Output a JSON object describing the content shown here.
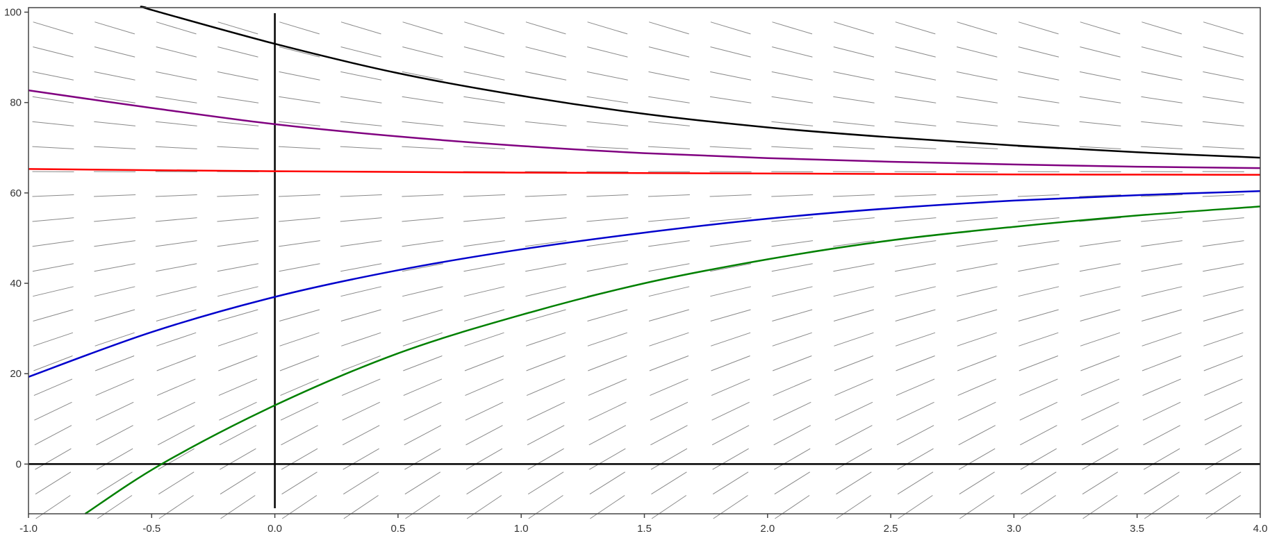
{
  "chart_data": {
    "type": "line",
    "title": "",
    "xlabel": "",
    "ylabel": "",
    "xlim": [
      -1.0,
      4.0
    ],
    "ylim": [
      -11,
      101
    ],
    "grid": false,
    "x_ticks": [
      -1.0,
      -0.5,
      0.0,
      0.5,
      1.0,
      1.5,
      2.0,
      2.5,
      3.0,
      3.5,
      4.0
    ],
    "x_tick_labels": [
      "-1.0",
      "-0.5",
      "0.0",
      "0.5",
      "1.0",
      "1.5",
      "2.0",
      "2.5",
      "3.0",
      "3.5",
      "4.0"
    ],
    "y_ticks": [
      0,
      20,
      40,
      60,
      80,
      100
    ],
    "y_tick_labels": [
      "0",
      "20",
      "40",
      "60",
      "80",
      "100"
    ],
    "axis_lines": {
      "x_zero": true,
      "y_zero": true
    },
    "slope_field": {
      "description": "direction field for dy/dt = k (64 - y)",
      "k": 0.5,
      "equilibrium": 64,
      "x_start": -0.9,
      "x_step": 0.25,
      "x_count": 20,
      "y_start": 96.5,
      "y_step": -5.3,
      "y_count": 21,
      "color": "#888888"
    },
    "series": [
      {
        "color": "#000000",
        "x": [
          -0.52,
          -0.5,
          0.0,
          0.5,
          1.0,
          1.5,
          2.0,
          2.5,
          3.0,
          3.5,
          4.0
        ],
        "y": [
          101,
          100.5,
          93,
          86.5,
          81.5,
          77.5,
          74.5,
          72.3,
          70.5,
          69,
          67.8
        ]
      },
      {
        "color": "#800080",
        "x": [
          -1.0,
          -0.5,
          0.0,
          0.5,
          1.0,
          1.5,
          2.0,
          2.5,
          3.0,
          3.5,
          4.0
        ],
        "y": [
          82.7,
          78.8,
          75.2,
          72.5,
          70.4,
          68.8,
          67.7,
          66.9,
          66.3,
          65.8,
          65.5
        ]
      },
      {
        "color": "#ff0000",
        "x": [
          -1.0,
          0.0,
          1.0,
          2.0,
          3.0,
          4.0
        ],
        "y": [
          65.3,
          64.8,
          64.5,
          64.3,
          64.1,
          64.0
        ]
      },
      {
        "color": "#0000cc",
        "x": [
          -1.0,
          -0.5,
          0.0,
          0.5,
          1.0,
          1.5,
          2.0,
          2.5,
          3.0,
          3.5,
          4.0
        ],
        "y": [
          19.3,
          29.2,
          37,
          42.9,
          47.5,
          51.2,
          54.3,
          56.6,
          58.3,
          59.5,
          60.4
        ]
      },
      {
        "color": "#008000",
        "x": [
          -0.77,
          -0.46,
          0.0,
          0.5,
          1.0,
          1.5,
          2.0,
          2.5,
          3.0,
          3.5,
          4.0
        ],
        "y": [
          -11,
          0,
          13,
          24.5,
          33,
          40,
          45.3,
          49.5,
          52.5,
          55,
          57
        ]
      }
    ]
  }
}
